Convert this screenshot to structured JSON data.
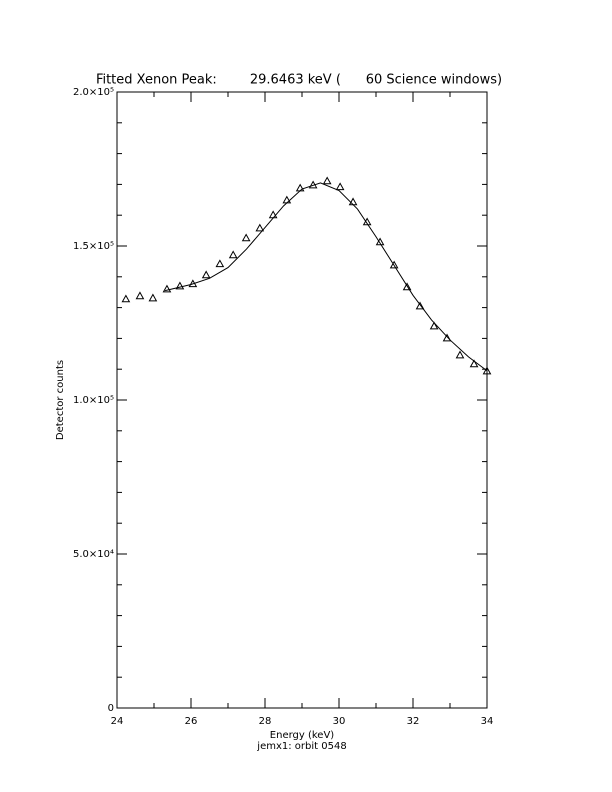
{
  "chart_data": {
    "type": "scatter",
    "title": "Fitted Xenon Peak:        29.6463 keV (      60 Science windows)",
    "x_label": "Energy (keV)",
    "y_label": "Detector counts",
    "subtitle": "jemx1: orbit 0548",
    "xlim": [
      24,
      34
    ],
    "ylim": [
      0,
      200000
    ],
    "xticks": [
      24,
      26,
      28,
      30,
      32,
      34
    ],
    "yticks": [
      0,
      {
        "value": 50000,
        "label": "5.0×10⁴"
      },
      {
        "value": 100000,
        "label": "1.0×10⁵"
      },
      {
        "value": 150000,
        "label": "1.5×10⁵"
      },
      {
        "value": 200000,
        "label": "2.0×10⁵"
      }
    ],
    "xminorticks": [
      25,
      27,
      29,
      31,
      33
    ],
    "yminorticks": [
      10000,
      20000,
      30000,
      40000,
      60000,
      70000,
      80000,
      90000,
      110000,
      120000,
      130000,
      140000,
      160000,
      170000,
      180000,
      190000
    ],
    "series": [
      {
        "marker": "triangle",
        "color": "#000000",
        "x": [
          24.24,
          24.62,
          24.97,
          25.35,
          25.7,
          26.05,
          26.41,
          26.78,
          27.14,
          27.49,
          27.86,
          28.22,
          28.59,
          28.95,
          29.3,
          29.68,
          30.03,
          30.38,
          30.76,
          31.11,
          31.49,
          31.84,
          32.19,
          32.57,
          32.92,
          33.27,
          33.65,
          34.0
        ],
        "values": [
          132800,
          133800,
          133100,
          136000,
          137000,
          137700,
          140600,
          144200,
          147100,
          152600,
          155800,
          160100,
          164900,
          168800,
          169800,
          171100,
          169200,
          164300,
          157800,
          151300,
          143800,
          136700,
          130500,
          124000,
          120100,
          114600,
          111700,
          109400
        ]
      },
      {
        "marker": "line",
        "color": "#000000",
        "x": [
          25.3,
          26,
          26.5,
          27,
          27.5,
          28,
          28.5,
          29,
          29.5,
          30,
          30.5,
          31,
          31.5,
          32,
          32.5,
          33,
          33.5,
          34
        ],
        "values": [
          135500,
          137500,
          139500,
          143000,
          149000,
          156000,
          163000,
          168500,
          170500,
          168000,
          162000,
          153000,
          143500,
          134000,
          126000,
          119500,
          114000,
          109500
        ]
      }
    ]
  }
}
